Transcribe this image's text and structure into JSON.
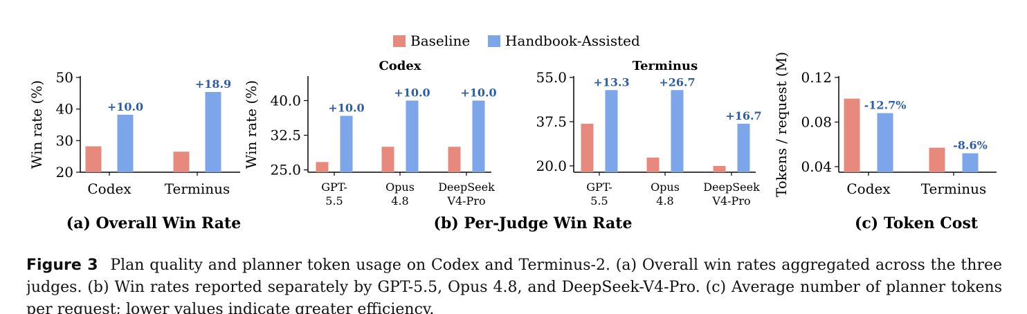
{
  "colors": {
    "baseline": "#E8897D",
    "assisted": "#7DA6EA",
    "annotation": "#2E5DA8",
    "axis": "#000000"
  },
  "legend": {
    "items": [
      {
        "label": "Baseline",
        "color": "#E8897D"
      },
      {
        "label": "Handbook-Assisted",
        "color": "#7DA6EA"
      }
    ]
  },
  "chart_data": [
    {
      "type": "bar",
      "subtitle": "(a) Overall Win Rate",
      "title": "",
      "ylabel": "Win rate (%)",
      "ylim": [
        20,
        50
      ],
      "yticks": [
        "20",
        "30",
        "40",
        "50"
      ],
      "categories": [
        "Codex",
        "Terminus"
      ],
      "series": [
        {
          "name": "Baseline",
          "values": [
            28.2,
            26.5
          ]
        },
        {
          "name": "Handbook-Assisted",
          "values": [
            38.2,
            45.4
          ]
        }
      ],
      "annotations": [
        "+10.0",
        "+18.9"
      ]
    },
    {
      "type": "bar",
      "subtitle": "(b) Per-Judge Win Rate",
      "title": "Codex",
      "ylabel": "Win rate (%)",
      "ylim": [
        24.5,
        45
      ],
      "yticks": [
        "25.0",
        "32.5",
        "40.0"
      ],
      "categories": [
        "GPT-\n5.5",
        "Opus\n4.8",
        "DeepSeek\nV4-Pro"
      ],
      "series": [
        {
          "name": "Baseline",
          "values": [
            26.7,
            30.0,
            30.0
          ]
        },
        {
          "name": "Handbook-Assisted",
          "values": [
            36.7,
            40.0,
            40.0
          ]
        }
      ],
      "annotations": [
        "+10.0",
        "+10.0",
        "+10.0"
      ]
    },
    {
      "type": "bar",
      "subtitle": "",
      "title": "Terminus",
      "ylabel": "",
      "ylim": [
        17.5,
        55
      ],
      "yticks": [
        "20.0",
        "37.5",
        "55.0"
      ],
      "categories": [
        "GPT-\n5.5",
        "Opus\n4.8",
        "DeepSeek\nV4-Pro"
      ],
      "series": [
        {
          "name": "Baseline",
          "values": [
            36.7,
            23.3,
            20.0
          ]
        },
        {
          "name": "Handbook-Assisted",
          "values": [
            50.0,
            50.0,
            36.7
          ]
        }
      ],
      "annotations": [
        "+13.3",
        "+26.7",
        "+16.7"
      ]
    },
    {
      "type": "bar",
      "subtitle": "(c) Token Cost",
      "title": "",
      "ylabel": "Tokens / request (M)",
      "ylim": [
        0.035,
        0.12
      ],
      "yticks": [
        "0.04",
        "0.08",
        "0.12"
      ],
      "categories": [
        "Codex",
        "Terminus"
      ],
      "series": [
        {
          "name": "Baseline",
          "values": [
            0.101,
            0.057
          ]
        },
        {
          "name": "Handbook-Assisted",
          "values": [
            0.088,
            0.052
          ]
        }
      ],
      "annotations": [
        "-12.7%",
        "-8.6%"
      ]
    }
  ],
  "caption": {
    "label": "Figure 3",
    "text": "Plan quality and planner token usage on Codex and Terminus-2. (a) Overall win rates aggregated across the three judges. (b) Win rates reported separately by GPT-5.5, Opus 4.8, and DeepSeek-V4-Pro. (c) Average number of planner tokens per request; lower values indicate greater efficiency."
  }
}
